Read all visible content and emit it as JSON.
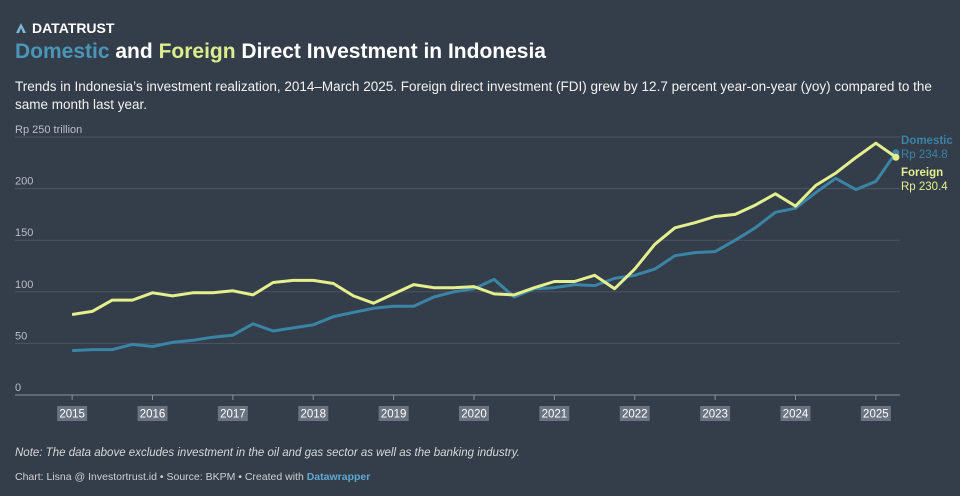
{
  "brand": "DATATRUST",
  "chart_data": {
    "type": "line",
    "title_parts": [
      "Domestic",
      "and",
      "Foreign",
      "Direct Investment in Indonesia"
    ],
    "subtitle": "Trends in Indonesia’s investment realization, 2014–March 2025. Foreign direct investment (FDI) grew by 12.7 percent year-on-year (yoy) compared to the same month last year.",
    "x": [
      2015,
      2015.25,
      2015.5,
      2015.75,
      2016,
      2016.25,
      2016.5,
      2016.75,
      2017,
      2017.25,
      2017.5,
      2017.75,
      2018,
      2018.25,
      2018.5,
      2018.75,
      2019,
      2019.25,
      2019.5,
      2019.75,
      2020,
      2020.25,
      2020.5,
      2020.75,
      2021,
      2021.25,
      2021.5,
      2021.75,
      2022,
      2022.25,
      2022.5,
      2022.75,
      2023,
      2023.25,
      2023.5,
      2023.75,
      2024,
      2024.25,
      2024.5,
      2024.75,
      2025,
      2025.25
    ],
    "series": [
      {
        "name": "Domestic",
        "color": "#3a84a6",
        "values": [
          43,
          44,
          44,
          49,
          47,
          51,
          53,
          56,
          58,
          69,
          62,
          65,
          68,
          76,
          80,
          84,
          86,
          86,
          95,
          100,
          103,
          112,
          95,
          103,
          104,
          107,
          106,
          113,
          116,
          122,
          135,
          138,
          139,
          150,
          162,
          177,
          181,
          196,
          210,
          199,
          207,
          234.8
        ],
        "value_labels": [
          null,
          null,
          null,
          null,
          null,
          null,
          null,
          null,
          null,
          null,
          null,
          null,
          null,
          null,
          null,
          null,
          null,
          null,
          null,
          null,
          null,
          null,
          null,
          null,
          null,
          null,
          null,
          null,
          null,
          null,
          null,
          null,
          null,
          null,
          null,
          null,
          null,
          null,
          null,
          null,
          null,
          "Rp 234.8"
        ]
      },
      {
        "name": "Foreign",
        "color": "#e4ef8e",
        "values": [
          78,
          81,
          92,
          92,
          99,
          96,
          99,
          99,
          101,
          97,
          109,
          111,
          111,
          108,
          96,
          89,
          98,
          107,
          104,
          104,
          105,
          98,
          97,
          104,
          110,
          110,
          116,
          103,
          122,
          146,
          162,
          167,
          173,
          175,
          184,
          195,
          183,
          203,
          215,
          230,
          244,
          230.4
        ],
        "value_labels": [
          null,
          null,
          null,
          null,
          null,
          null,
          null,
          null,
          null,
          null,
          null,
          null,
          null,
          null,
          null,
          null,
          null,
          null,
          null,
          null,
          null,
          null,
          null,
          null,
          null,
          null,
          null,
          null,
          null,
          null,
          null,
          null,
          null,
          null,
          null,
          null,
          null,
          null,
          null,
          null,
          null,
          "Rp 230.4"
        ]
      }
    ],
    "xlim": [
      2014.6,
      2025.4
    ],
    "xticks": [
      2015,
      2016,
      2017,
      2018,
      2019,
      2020,
      2021,
      2022,
      2023,
      2024,
      2025
    ],
    "ylim": [
      0,
      250
    ],
    "yticks": [
      0,
      50,
      100,
      150,
      200,
      {
        "value": 250,
        "label": "Rp 250 trillion"
      }
    ],
    "grid": true,
    "note": "Note: The data above excludes investment in the oil and gas sector as well as the banking industry.",
    "credit": "Chart: Lisna @ Investortrust.id • Source: BKPM • Created with",
    "credit_tool": "Datawrapper"
  }
}
